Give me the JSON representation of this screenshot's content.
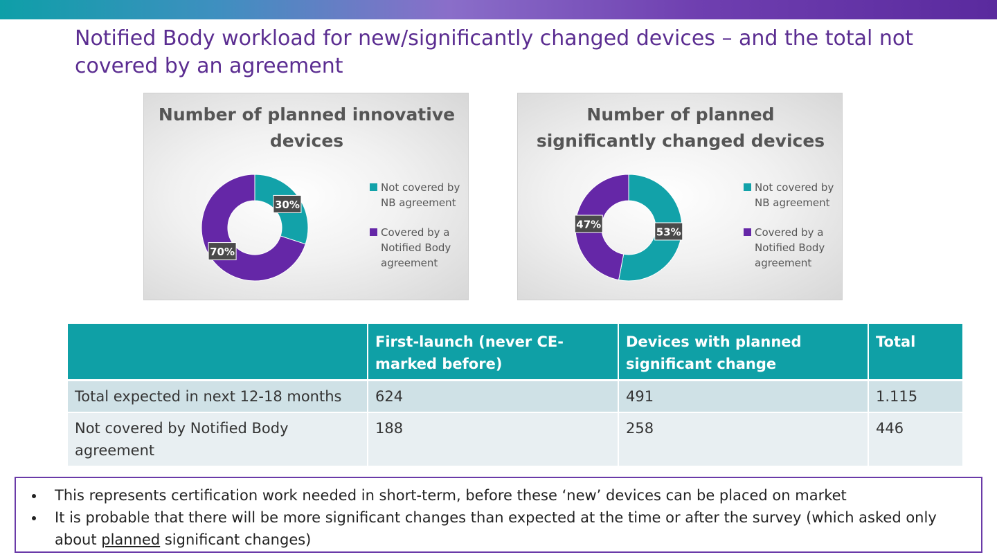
{
  "slide": {
    "title": "Notified Body workload for new/significantly changed devices – and the total not covered by an agreement"
  },
  "colors": {
    "teal": "#12a2a9",
    "purple": "#6527a7",
    "label_bg": "#4a4a4a"
  },
  "chart_data": [
    {
      "type": "pie",
      "title": "Number of planned innovative devices",
      "categories": [
        "Not covered by NB agreement",
        "Covered by a Notified Body agreement"
      ],
      "values": [
        30,
        70
      ],
      "labels": [
        "30%",
        "70%"
      ],
      "colors": [
        "#12a2a9",
        "#6527a7"
      ],
      "legend": "right"
    },
    {
      "type": "pie",
      "title": "Number of planned significantly changed devices",
      "categories": [
        "Not covered by NB agreement",
        "Covered by a Notified Body agreement"
      ],
      "values": [
        53,
        47
      ],
      "labels": [
        "53%",
        "47%"
      ],
      "colors": [
        "#12a2a9",
        "#6527a7"
      ],
      "legend": "right"
    }
  ],
  "table": {
    "headers": [
      "",
      "First-launch (never CE-marked before)",
      "Devices with planned significant change",
      "Total"
    ],
    "rows": [
      [
        "Total expected in next 12-18 months",
        "624",
        "491",
        "1.115"
      ],
      [
        "Not covered by Notified Body agreement",
        "188",
        "258",
        "446"
      ]
    ]
  },
  "notes": {
    "item1": "This represents certification work needed in short-term, before these ‘new’ devices can be placed on market",
    "item2_before": "It is probable that there will be more significant changes than expected at the time or after the survey (which asked only about ",
    "item2_underlined": "planned",
    "item2_after": " significant changes)"
  }
}
